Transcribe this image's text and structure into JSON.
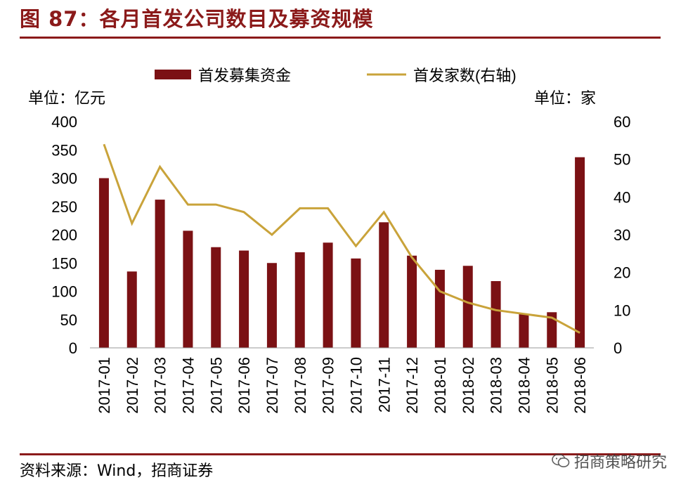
{
  "title": "图 87：各月首发公司数目及募资规模",
  "source": "资料来源：Wind，招商证券",
  "watermark": "招商策略研究",
  "colors": {
    "brand": "#8B1A1A",
    "bar": "#7B1114",
    "line": "#C9A33A"
  },
  "chart_data": {
    "type": "bar+line",
    "categories": [
      "2017-01",
      "2017-02",
      "2017-03",
      "2017-04",
      "2017-05",
      "2017-06",
      "2017-07",
      "2017-08",
      "2017-09",
      "2017-10",
      "2017-11",
      "2017-12",
      "2018-01",
      "2018-02",
      "2018-03",
      "2018-04",
      "2018-05",
      "2018-06"
    ],
    "series": [
      {
        "name": "首发募集资金",
        "type": "bar",
        "axis": "left",
        "values": [
          300,
          135,
          262,
          207,
          178,
          172,
          150,
          169,
          186,
          158,
          222,
          163,
          138,
          145,
          118,
          60,
          63,
          337
        ]
      },
      {
        "name": "首发家数(右轴)",
        "type": "line",
        "axis": "right",
        "values": [
          54,
          33,
          48,
          38,
          38,
          36,
          30,
          37,
          37,
          27,
          36,
          24,
          15,
          12,
          10,
          9,
          8,
          4
        ]
      }
    ],
    "left_axis": {
      "unit": "单位：亿元",
      "ylim": [
        0,
        400
      ],
      "ticks": [
        0,
        50,
        100,
        150,
        200,
        250,
        300,
        350,
        400
      ]
    },
    "right_axis": {
      "unit": "单位：家",
      "ylim": [
        0,
        60
      ],
      "ticks": [
        0,
        10,
        20,
        30,
        40,
        50,
        60
      ]
    },
    "legend_position": "top"
  }
}
